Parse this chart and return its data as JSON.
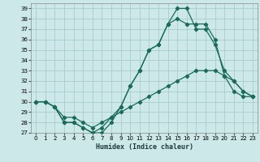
{
  "xlabel": "Humidex (Indice chaleur)",
  "bg_color": "#cce8e8",
  "grid_color": "#aacccc",
  "line_color": "#1a6b5a",
  "ylim": [
    27,
    39.5
  ],
  "xlim": [
    -0.5,
    23.5
  ],
  "yticks": [
    27,
    28,
    29,
    30,
    31,
    32,
    33,
    34,
    35,
    36,
    37,
    38,
    39
  ],
  "xticks": [
    0,
    1,
    2,
    3,
    4,
    5,
    6,
    7,
    8,
    9,
    10,
    11,
    12,
    13,
    14,
    15,
    16,
    17,
    18,
    19,
    20,
    21,
    22,
    23
  ],
  "line1_x": [
    0,
    1,
    2,
    3,
    4,
    5,
    6,
    7,
    8,
    9,
    10,
    11,
    12,
    13,
    14,
    15,
    16,
    17,
    18,
    19,
    20,
    21,
    22,
    23
  ],
  "line1_y": [
    30,
    30,
    29.5,
    28,
    28,
    27.5,
    27,
    27.5,
    28.5,
    29.5,
    31.5,
    33,
    35,
    35.5,
    37.5,
    39,
    39,
    37,
    37,
    35.5,
    33,
    32,
    31,
    30.5
  ],
  "line2_x": [
    0,
    1,
    2,
    3,
    4,
    5,
    6,
    7,
    8,
    9,
    10,
    11,
    12,
    13,
    14,
    15,
    16,
    17,
    18,
    19,
    20,
    21,
    22,
    23
  ],
  "line2_y": [
    30,
    30,
    29.5,
    28,
    28,
    27.5,
    27,
    27,
    28,
    29.5,
    31.5,
    33,
    35,
    35.5,
    37.5,
    38,
    37.5,
    37.5,
    37.5,
    36,
    32.5,
    32,
    31,
    30.5
  ],
  "line3_x": [
    0,
    1,
    2,
    3,
    4,
    5,
    6,
    7,
    8,
    9,
    10,
    11,
    12,
    13,
    14,
    15,
    16,
    17,
    18,
    19,
    20,
    21,
    22,
    23
  ],
  "line3_y": [
    30,
    30,
    29.5,
    28.5,
    28.5,
    28,
    27.5,
    28,
    28.5,
    29,
    29.5,
    30,
    30.5,
    31,
    31.5,
    32,
    32.5,
    33,
    33,
    33,
    32.5,
    31,
    30.5,
    30.5
  ]
}
